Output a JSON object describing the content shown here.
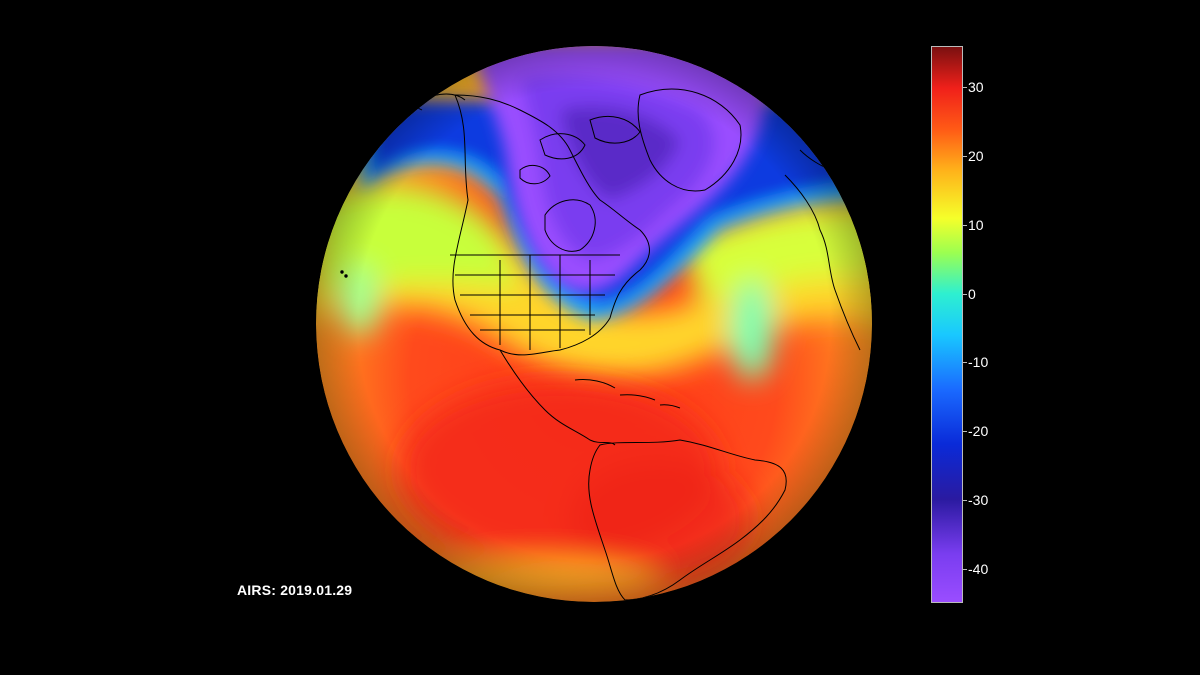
{
  "caption": "AIRS: 2019.01.29",
  "colorbar": {
    "min": -45,
    "max": 36,
    "ticks": [
      "30",
      "20",
      "10",
      "0",
      "-10",
      "-20",
      "-30",
      "-40"
    ],
    "stops": [
      {
        "value": -45,
        "color": "#9a4dff"
      },
      {
        "value": -38,
        "color": "#7a3df0"
      },
      {
        "value": -30,
        "color": "#2a1aa0"
      },
      {
        "value": -22,
        "color": "#0a2ad8"
      },
      {
        "value": -14,
        "color": "#1a6aff"
      },
      {
        "value": -6,
        "color": "#19c8ff"
      },
      {
        "value": 0,
        "color": "#2ef0d0"
      },
      {
        "value": 6,
        "color": "#9cff50"
      },
      {
        "value": 11,
        "color": "#f5ff2a"
      },
      {
        "value": 18,
        "color": "#ffb21a"
      },
      {
        "value": 24,
        "color": "#ff5a16"
      },
      {
        "value": 30,
        "color": "#f0201a"
      },
      {
        "value": 36,
        "color": "#7a1010"
      }
    ]
  },
  "colors": {
    "background": "#000000",
    "coastline": "#000000"
  }
}
